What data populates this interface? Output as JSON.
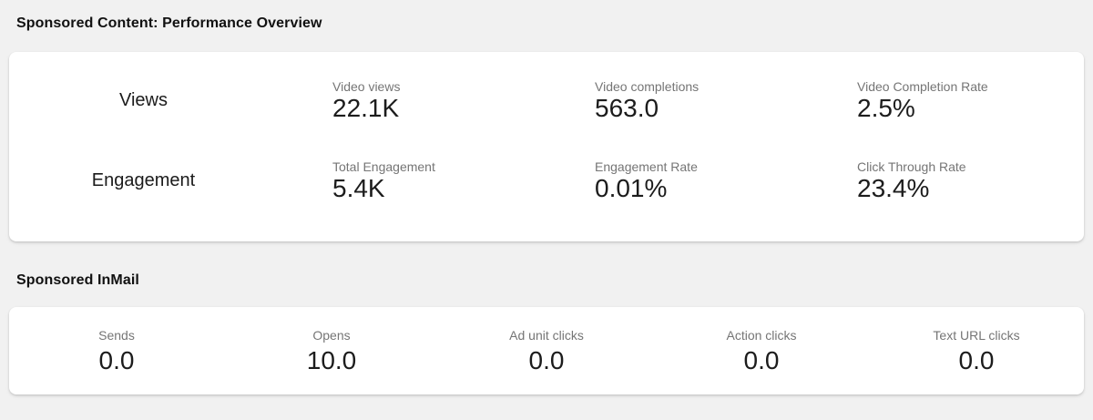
{
  "colors": {
    "page_background": "#f1f1f1",
    "card_background": "#ffffff",
    "heading_text": "#111111",
    "metric_label_text": "#757575",
    "metric_value_text": "#1c1c1c"
  },
  "overview": {
    "title": "Sponsored Content: Performance Overview",
    "rows": [
      {
        "label": "Views",
        "metrics": [
          {
            "label": "Video views",
            "value": "22.1K"
          },
          {
            "label": "Video completions",
            "value": "563.0"
          },
          {
            "label": "Video Completion Rate",
            "value": "2.5%"
          }
        ]
      },
      {
        "label": "Engagement",
        "metrics": [
          {
            "label": "Total Engagement",
            "value": "5.4K"
          },
          {
            "label": "Engagement Rate",
            "value": "0.01%"
          },
          {
            "label": "Click Through Rate",
            "value": "23.4%"
          }
        ]
      }
    ]
  },
  "inmail": {
    "title": "Sponsored InMail",
    "metrics": [
      {
        "label": "Sends",
        "value": "0.0"
      },
      {
        "label": "Opens",
        "value": "10.0"
      },
      {
        "label": "Ad unit clicks",
        "value": "0.0"
      },
      {
        "label": "Action clicks",
        "value": "0.0"
      },
      {
        "label": "Text URL clicks",
        "value": "0.0"
      }
    ]
  }
}
